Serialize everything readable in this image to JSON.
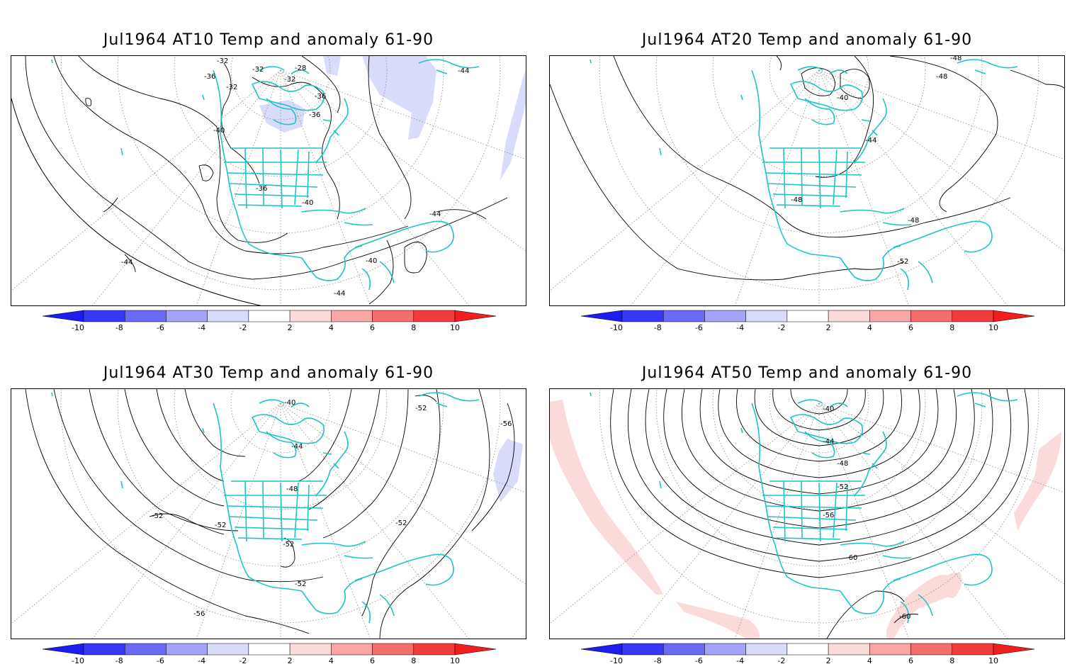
{
  "colors": {
    "coast": "#1ec4c4",
    "contour": "#000000",
    "grid": "#8a8a8a",
    "neg_anomaly": "#d9dbfb",
    "pos_anomaly": "#fbdada"
  },
  "colorbar": {
    "ticks": [
      "-10",
      "-8",
      "-6",
      "-4",
      "-2",
      "2",
      "4",
      "6",
      "8",
      "10"
    ],
    "colors": [
      "#1d1df0",
      "#3838f4",
      "#6a6af6",
      "#a3a3f8",
      "#d9dbfb",
      "#ffffff",
      "#fbdada",
      "#f8a6a6",
      "#f56e6e",
      "#f03c3c",
      "#f01e1e"
    ]
  },
  "panels": [
    {
      "title": "Jul1964 AT10 Temp and anomaly 61-90",
      "contour_labels": [
        "-32",
        "-32",
        "-28",
        "-36",
        "-32",
        "-36",
        "-36",
        "-32",
        "-40",
        "-36",
        "-40",
        "-44",
        "-44",
        "-40",
        "-44",
        "-44"
      ],
      "anomaly_regions": [
        "negative"
      ]
    },
    {
      "title": "Jul1964 AT20 Temp and anomaly 61-90",
      "contour_labels": [
        "-48",
        "-48",
        "-40",
        "-44",
        "-48",
        "-48",
        "-52"
      ],
      "anomaly_regions": []
    },
    {
      "title": "Jul1964 AT30 Temp and anomaly 61-90",
      "contour_labels": [
        "-40",
        "-52",
        "-56",
        "-44",
        "-48",
        "-52",
        "-52",
        "-52",
        "-52",
        "-52",
        "-56"
      ],
      "anomaly_regions": [
        "negative"
      ]
    },
    {
      "title": "Jul1964 AT50 Temp and anomaly 61-90",
      "contour_labels": [
        "-40",
        "-44",
        "-48",
        "-52",
        "-56",
        "-60",
        "-60"
      ],
      "anomaly_regions": [
        "positive"
      ]
    }
  ]
}
